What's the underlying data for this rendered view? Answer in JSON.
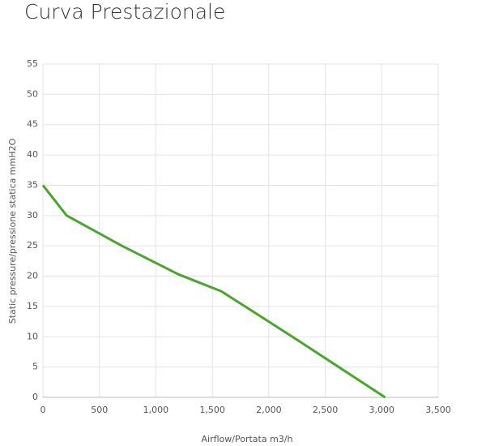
{
  "chart_data": {
    "type": "line",
    "title": "Curva Prestazionale",
    "x_label": "Airflow/Portata m3/h",
    "y_label": "Static pressure/pressione statica mmH2O",
    "x": [
      0,
      210,
      700,
      1200,
      1580,
      2000,
      2250,
      3030
    ],
    "series": [
      {
        "name": "Curva",
        "color": "#4aa52e",
        "values": [
          35,
          30,
          25,
          20.3,
          17.5,
          12.5,
          9.5,
          0
        ]
      }
    ],
    "xlim": [
      0,
      3500
    ],
    "ylim": [
      0,
      55
    ],
    "xticks": [
      0,
      500,
      {
        "value": 1000,
        "label": "1,000"
      },
      {
        "value": 1500,
        "label": "1,500"
      },
      {
        "value": 2000,
        "label": "2,000"
      },
      {
        "value": 2500,
        "label": "2,500"
      },
      {
        "value": 3000,
        "label": "3,000"
      },
      {
        "value": 3500,
        "label": "3,500"
      }
    ],
    "yticks": [
      0,
      5,
      10,
      15,
      20,
      25,
      30,
      35,
      40,
      45,
      50,
      55
    ],
    "grid": true
  }
}
